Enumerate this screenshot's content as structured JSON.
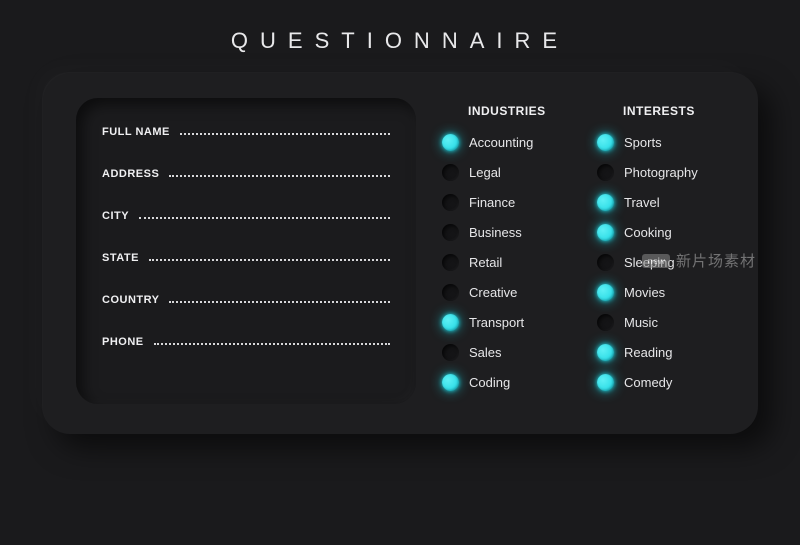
{
  "title": "QUESTIONNAIRE",
  "colors": {
    "background": "#1a1a1c",
    "card": "#1e1e20",
    "panel": "#1b1b1d",
    "text": "#f0f0f2",
    "accent": "#19d4e0"
  },
  "form": {
    "fields": [
      {
        "label": "FULL NAME"
      },
      {
        "label": "ADDRESS"
      },
      {
        "label": "CITY"
      },
      {
        "label": "STATE"
      },
      {
        "label": "COUNTRY"
      },
      {
        "label": "PHONE"
      }
    ]
  },
  "industries": {
    "heading": "INDUSTRIES",
    "options": [
      {
        "label": "Accounting",
        "selected": true
      },
      {
        "label": "Legal",
        "selected": false
      },
      {
        "label": "Finance",
        "selected": false
      },
      {
        "label": "Business",
        "selected": false
      },
      {
        "label": "Retail",
        "selected": false
      },
      {
        "label": "Creative",
        "selected": false
      },
      {
        "label": "Transport",
        "selected": true
      },
      {
        "label": "Sales",
        "selected": false
      },
      {
        "label": "Coding",
        "selected": true
      }
    ]
  },
  "interests": {
    "heading": "INTERESTS",
    "options": [
      {
        "label": "Sports",
        "selected": true
      },
      {
        "label": "Photography",
        "selected": false
      },
      {
        "label": "Travel",
        "selected": true
      },
      {
        "label": "Cooking",
        "selected": true
      },
      {
        "label": "Sleeping",
        "selected": false
      },
      {
        "label": "Movies",
        "selected": true
      },
      {
        "label": "Music",
        "selected": false
      },
      {
        "label": "Reading",
        "selected": true
      },
      {
        "label": "Comedy",
        "selected": true
      }
    ]
  },
  "watermark": {
    "badge": "new",
    "text": "新片场素材"
  }
}
